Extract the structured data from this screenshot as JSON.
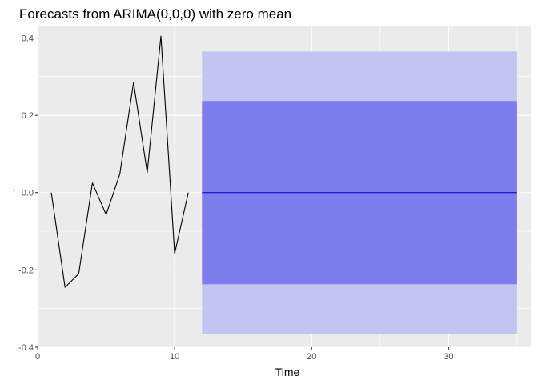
{
  "chart_data": {
    "type": "line",
    "title": "Forecasts from ARIMA(0,0,0) with zero mean",
    "xlabel": "Time",
    "ylabel": ".",
    "xlim": [
      0,
      36
    ],
    "ylim": [
      -0.4,
      0.43
    ],
    "x_ticks": [
      0,
      10,
      20,
      30
    ],
    "y_ticks": [
      -0.4,
      -0.2,
      0.0,
      0.2,
      0.4
    ],
    "y_tick_labels": [
      "-0.4",
      "-0.2",
      "0.0",
      "0.2",
      "0.4"
    ],
    "x_tick_labels": [
      "0",
      "10",
      "20",
      "30"
    ],
    "grid": true,
    "series": [
      {
        "x": [
          1,
          2,
          3,
          4,
          5,
          6,
          7,
          8,
          9,
          10,
          11
        ],
        "values": [
          0.0,
          -0.245,
          -0.21,
          0.025,
          -0.057,
          0.048,
          0.285,
          0.052,
          0.405,
          -0.158,
          0.0
        ],
        "color": "#000000"
      }
    ],
    "forecast": {
      "x_start": 12,
      "x_end": 35,
      "mean": 0.0,
      "mean_color": "#0000cc",
      "intervals": [
        {
          "lower": -0.365,
          "upper": 0.365,
          "color": "#c3c3f4"
        },
        {
          "lower": -0.237,
          "upper": 0.237,
          "color": "#7d7def"
        }
      ]
    },
    "panel_background": "#ebebeb",
    "grid_color": "#ffffff"
  }
}
